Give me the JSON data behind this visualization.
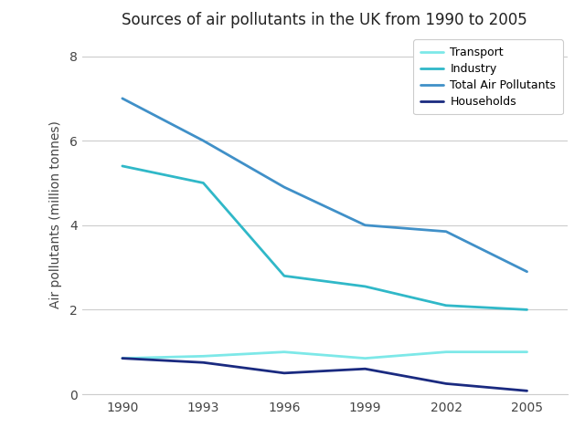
{
  "title": "Sources of air pollutants in the UK from 1990 to 2005",
  "ylabel": "Air pollutants (million tonnes)",
  "years": [
    1990,
    1993,
    1996,
    1999,
    2002,
    2005
  ],
  "series": {
    "Transport": {
      "values": [
        0.85,
        0.9,
        1.0,
        0.85,
        1.0,
        1.0
      ],
      "color": "#7de8e8"
    },
    "Industry": {
      "values": [
        5.4,
        5.0,
        2.8,
        2.55,
        2.1,
        2.0
      ],
      "color": "#30b8c8"
    },
    "Total Air Pollutants": {
      "values": [
        7.0,
        6.0,
        4.9,
        4.0,
        3.85,
        2.9
      ],
      "color": "#4090c8"
    },
    "Households": {
      "values": [
        0.85,
        0.75,
        0.5,
        0.6,
        0.25,
        0.08
      ],
      "color": "#1a2a80"
    }
  },
  "ylim": [
    0,
    8.5
  ],
  "yticks": [
    0,
    2,
    4,
    6,
    8
  ],
  "background_color": "#ffffff",
  "legend_order": [
    "Transport",
    "Industry",
    "Total Air Pollutants",
    "Households"
  ],
  "title_fontsize": 12,
  "axis_fontsize": 10,
  "tick_fontsize": 10,
  "linewidth": 2.0
}
